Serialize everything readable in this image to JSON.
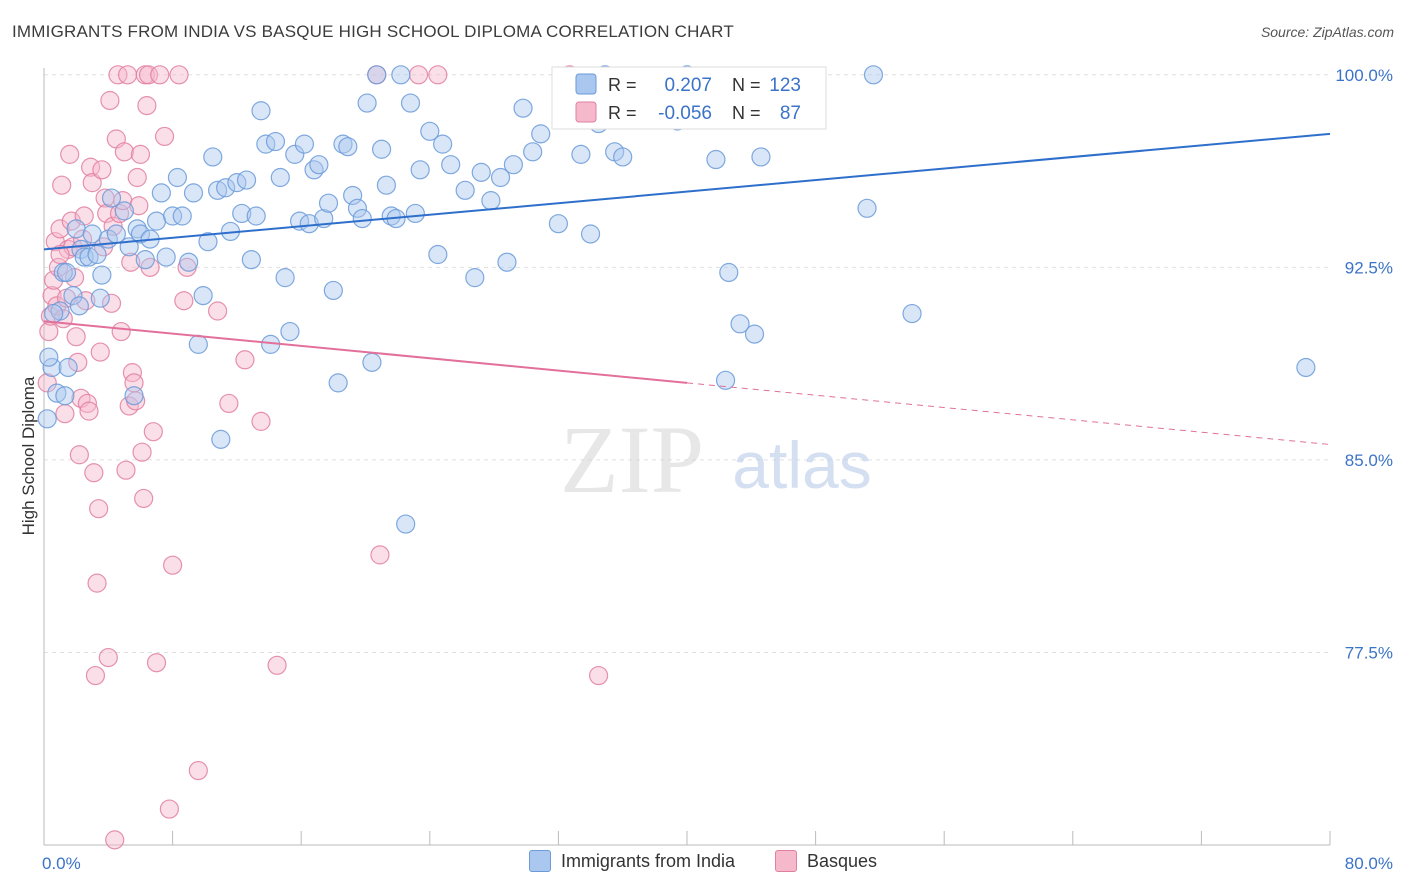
{
  "header": {
    "title": "IMMIGRANTS FROM INDIA VS BASQUE HIGH SCHOOL DIPLOMA CORRELATION CHART",
    "source": "Source: ZipAtlas.com"
  },
  "watermark": {
    "zip": "ZIP",
    "atlas": "atlas"
  },
  "stats": {
    "r_label": "R =",
    "n_label": "N =",
    "india": {
      "r": "0.207",
      "n": "123"
    },
    "basque": {
      "r": "-0.056",
      "n": "87"
    }
  },
  "colors": {
    "india_fill": "#aac8ef",
    "india_stroke": "#6a9ad8",
    "india_line": "#2f6fcc",
    "basque_fill": "#f6b9cc",
    "basque_stroke": "#e07fa0",
    "basque_line": "#e2709a",
    "axis_text": "#3b73c8",
    "grid": "#e0e0e0"
  },
  "chart_data": {
    "type": "scatter",
    "title": "IMMIGRANTS FROM INDIA VS BASQUE HIGH SCHOOL DIPLOMA CORRELATION CHART",
    "xlabel": "",
    "ylabel": "High School Diploma",
    "xlim": [
      0,
      80
    ],
    "ylim": [
      70.0,
      101.2
    ],
    "x_tick_labels": [
      "0.0%",
      "80.0%"
    ],
    "y_ticks": [
      100.0,
      92.5,
      85.0,
      77.5
    ],
    "y_tick_labels": [
      "100.0%",
      "92.5%",
      "85.0%",
      "77.5%"
    ],
    "grid": true,
    "legend_position": "bottom",
    "series": [
      {
        "name": "Immigrants from India",
        "trend": {
          "x": [
            0,
            80
          ],
          "y": [
            93.2,
            97.7
          ],
          "dashed_from": null
        },
        "points": [
          [
            0.2,
            86.6
          ],
          [
            0.5,
            88.6
          ],
          [
            0.8,
            87.6
          ],
          [
            1.0,
            90.8
          ],
          [
            1.2,
            92.3
          ],
          [
            1.4,
            92.3
          ],
          [
            1.5,
            88.6
          ],
          [
            1.8,
            91.4
          ],
          [
            2.0,
            94.0
          ],
          [
            2.3,
            93.2
          ],
          [
            2.5,
            92.9
          ],
          [
            2.8,
            92.9
          ],
          [
            3.0,
            93.8
          ],
          [
            3.3,
            93.0
          ],
          [
            3.6,
            92.2
          ],
          [
            4.0,
            93.6
          ],
          [
            4.2,
            95.2
          ],
          [
            4.5,
            93.8
          ],
          [
            5.0,
            94.7
          ],
          [
            5.3,
            93.3
          ],
          [
            5.6,
            87.5
          ],
          [
            5.8,
            94.0
          ],
          [
            6.0,
            93.8
          ],
          [
            6.3,
            92.8
          ],
          [
            6.6,
            93.6
          ],
          [
            7.0,
            94.3
          ],
          [
            7.3,
            95.4
          ],
          [
            7.6,
            92.9
          ],
          [
            8.0,
            94.5
          ],
          [
            8.3,
            96.0
          ],
          [
            8.6,
            94.5
          ],
          [
            9.0,
            92.7
          ],
          [
            9.3,
            95.4
          ],
          [
            9.6,
            89.5
          ],
          [
            9.9,
            91.4
          ],
          [
            10.2,
            93.5
          ],
          [
            10.5,
            96.8
          ],
          [
            10.8,
            95.5
          ],
          [
            11.0,
            85.8
          ],
          [
            11.3,
            95.6
          ],
          [
            11.6,
            93.9
          ],
          [
            12.0,
            95.8
          ],
          [
            12.3,
            94.6
          ],
          [
            12.6,
            95.9
          ],
          [
            12.9,
            92.8
          ],
          [
            13.2,
            94.5
          ],
          [
            13.5,
            98.6
          ],
          [
            13.8,
            97.3
          ],
          [
            14.1,
            89.5
          ],
          [
            14.4,
            97.4
          ],
          [
            14.7,
            96.0
          ],
          [
            15.0,
            92.1
          ],
          [
            15.3,
            90.0
          ],
          [
            15.6,
            96.9
          ],
          [
            15.9,
            94.3
          ],
          [
            16.2,
            97.3
          ],
          [
            16.5,
            94.2
          ],
          [
            16.8,
            96.3
          ],
          [
            17.1,
            96.5
          ],
          [
            17.4,
            94.4
          ],
          [
            17.7,
            95.0
          ],
          [
            18.0,
            91.6
          ],
          [
            18.3,
            88.0
          ],
          [
            18.6,
            97.3
          ],
          [
            18.9,
            97.2
          ],
          [
            19.2,
            95.3
          ],
          [
            19.5,
            94.8
          ],
          [
            19.8,
            94.4
          ],
          [
            20.1,
            98.9
          ],
          [
            20.4,
            88.8
          ],
          [
            20.7,
            100.0
          ],
          [
            21.0,
            97.1
          ],
          [
            21.3,
            95.7
          ],
          [
            21.6,
            94.5
          ],
          [
            21.9,
            94.4
          ],
          [
            22.2,
            100.0
          ],
          [
            22.5,
            82.5
          ],
          [
            22.8,
            98.9
          ],
          [
            23.1,
            94.6
          ],
          [
            23.4,
            96.3
          ],
          [
            24.0,
            97.8
          ],
          [
            24.5,
            93.0
          ],
          [
            24.8,
            97.3
          ],
          [
            25.3,
            96.5
          ],
          [
            26.2,
            95.5
          ],
          [
            26.8,
            92.1
          ],
          [
            27.2,
            96.2
          ],
          [
            27.8,
            95.1
          ],
          [
            28.4,
            96.0
          ],
          [
            28.8,
            92.7
          ],
          [
            29.2,
            96.5
          ],
          [
            29.8,
            98.7
          ],
          [
            30.4,
            97.0
          ],
          [
            30.9,
            97.7
          ],
          [
            32.0,
            94.2
          ],
          [
            32.8,
            98.3
          ],
          [
            33.4,
            96.9
          ],
          [
            34.0,
            93.8
          ],
          [
            34.5,
            98.1
          ],
          [
            34.9,
            100.0
          ],
          [
            35.5,
            97.0
          ],
          [
            36.0,
            96.8
          ],
          [
            37.2,
            99.2
          ],
          [
            38.0,
            98.5
          ],
          [
            39.0,
            99.5
          ],
          [
            39.4,
            98.2
          ],
          [
            40.0,
            100.0
          ],
          [
            40.4,
            98.5
          ],
          [
            41.8,
            96.7
          ],
          [
            42.4,
            88.1
          ],
          [
            42.6,
            92.3
          ],
          [
            43.3,
            90.3
          ],
          [
            44.2,
            89.9
          ],
          [
            44.6,
            96.8
          ],
          [
            51.2,
            94.8
          ],
          [
            51.6,
            100.0
          ],
          [
            54.0,
            90.7
          ],
          [
            78.5,
            88.6
          ],
          [
            0.3,
            89.0
          ],
          [
            0.6,
            90.7
          ],
          [
            1.3,
            87.5
          ],
          [
            2.2,
            91.0
          ],
          [
            3.5,
            91.3
          ]
        ]
      },
      {
        "name": "Basques",
        "trend": {
          "x": [
            0,
            80
          ],
          "y": [
            90.4,
            85.6
          ],
          "dashed_from": 40
        },
        "points": [
          [
            0.2,
            88.0
          ],
          [
            0.3,
            90.0
          ],
          [
            0.4,
            90.6
          ],
          [
            0.5,
            91.4
          ],
          [
            0.6,
            92.0
          ],
          [
            0.7,
            93.5
          ],
          [
            0.8,
            91.0
          ],
          [
            0.9,
            92.5
          ],
          [
            1.0,
            94.0
          ],
          [
            1.1,
            95.7
          ],
          [
            1.2,
            90.5
          ],
          [
            1.3,
            86.8
          ],
          [
            1.4,
            91.3
          ],
          [
            1.5,
            93.2
          ],
          [
            1.6,
            96.9
          ],
          [
            1.7,
            94.3
          ],
          [
            1.8,
            93.3
          ],
          [
            1.9,
            92.1
          ],
          [
            2.0,
            89.8
          ],
          [
            2.1,
            88.8
          ],
          [
            2.2,
            85.2
          ],
          [
            2.3,
            87.4
          ],
          [
            2.4,
            93.6
          ],
          [
            2.5,
            94.5
          ],
          [
            2.6,
            91.2
          ],
          [
            2.7,
            87.2
          ],
          [
            2.8,
            86.9
          ],
          [
            2.9,
            96.4
          ],
          [
            3.0,
            95.8
          ],
          [
            3.1,
            84.5
          ],
          [
            3.2,
            76.6
          ],
          [
            3.3,
            80.2
          ],
          [
            3.4,
            83.1
          ],
          [
            3.5,
            89.2
          ],
          [
            3.6,
            96.3
          ],
          [
            3.7,
            93.3
          ],
          [
            3.8,
            95.2
          ],
          [
            3.9,
            94.6
          ],
          [
            4.0,
            77.3
          ],
          [
            4.1,
            99.0
          ],
          [
            4.2,
            91.1
          ],
          [
            4.3,
            94.1
          ],
          [
            4.4,
            70.2
          ],
          [
            4.5,
            97.5
          ],
          [
            4.6,
            100.0
          ],
          [
            4.7,
            94.6
          ],
          [
            4.8,
            90.0
          ],
          [
            4.9,
            95.1
          ],
          [
            5.0,
            97.0
          ],
          [
            5.1,
            84.6
          ],
          [
            5.2,
            100.0
          ],
          [
            5.3,
            87.1
          ],
          [
            5.4,
            92.7
          ],
          [
            5.5,
            88.4
          ],
          [
            5.6,
            88.0
          ],
          [
            5.7,
            87.3
          ],
          [
            5.8,
            96.0
          ],
          [
            5.9,
            94.9
          ],
          [
            6.0,
            96.9
          ],
          [
            6.1,
            85.3
          ],
          [
            6.2,
            83.5
          ],
          [
            6.3,
            100.0
          ],
          [
            6.4,
            98.8
          ],
          [
            6.5,
            100.0
          ],
          [
            6.6,
            92.5
          ],
          [
            6.8,
            86.1
          ],
          [
            7.0,
            77.1
          ],
          [
            7.2,
            100.0
          ],
          [
            7.5,
            97.6
          ],
          [
            7.8,
            71.4
          ],
          [
            8.0,
            80.9
          ],
          [
            8.4,
            100.0
          ],
          [
            8.7,
            91.2
          ],
          [
            9.6,
            72.9
          ],
          [
            10.8,
            90.8
          ],
          [
            11.5,
            87.2
          ],
          [
            12.5,
            88.9
          ],
          [
            13.5,
            86.5
          ],
          [
            14.5,
            77.0
          ],
          [
            20.7,
            100.0
          ],
          [
            20.9,
            81.3
          ],
          [
            23.3,
            100.0
          ],
          [
            24.5,
            100.0
          ],
          [
            32.7,
            100.0
          ],
          [
            34.5,
            76.6
          ],
          [
            8.9,
            92.5
          ],
          [
            1.0,
            93.0
          ]
        ]
      }
    ]
  }
}
